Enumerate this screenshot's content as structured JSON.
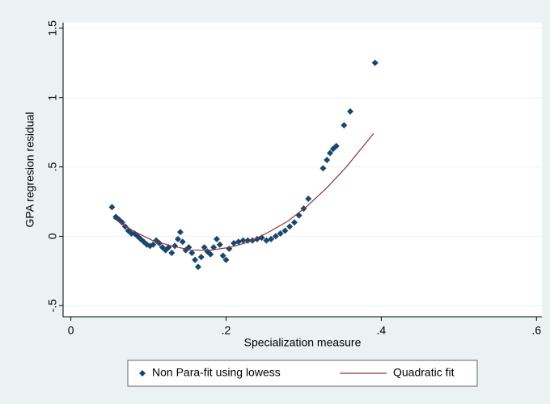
{
  "chart_data": {
    "type": "scatter",
    "xlabel": "Specialization measure",
    "ylabel": "GPA regresion residual",
    "xlim": [
      -0.01,
      0.607
    ],
    "ylim": [
      -0.58,
      1.54
    ],
    "xticks": [
      0,
      {
        "value": 0.2,
        "label": ".2"
      },
      {
        "value": 0.4,
        "label": ".4"
      },
      {
        "value": 0.6,
        "label": ".6"
      }
    ],
    "yticks": [
      {
        "value": -0.5,
        "label": "-.5"
      },
      0,
      {
        "value": 0.5,
        "label": ".5"
      },
      1,
      1.5
    ],
    "grid": true,
    "legend": "bottom",
    "series": [
      {
        "name": "Non Para-fit using lowess",
        "color": "#1a476f",
        "type": "scatter",
        "x": [
          0.053,
          0.058,
          0.062,
          0.066,
          0.07,
          0.074,
          0.078,
          0.082,
          0.086,
          0.09,
          0.094,
          0.098,
          0.102,
          0.106,
          0.11,
          0.114,
          0.118,
          0.122,
          0.126,
          0.13,
          0.134,
          0.138,
          0.141,
          0.144,
          0.148,
          0.152,
          0.156,
          0.16,
          0.164,
          0.168,
          0.172,
          0.176,
          0.18,
          0.184,
          0.188,
          0.192,
          0.196,
          0.2,
          0.204,
          0.21,
          0.216,
          0.222,
          0.228,
          0.234,
          0.24,
          0.246,
          0.252,
          0.258,
          0.264,
          0.27,
          0.276,
          0.282,
          0.288,
          0.294,
          0.3,
          0.306,
          0.325,
          0.33,
          0.334,
          0.338,
          0.342,
          0.352,
          0.36,
          0.392
        ],
        "values": [
          0.21,
          0.14,
          0.12,
          0.1,
          0.07,
          0.04,
          0.02,
          0.02,
          0,
          -0.02,
          -0.04,
          -0.06,
          -0.07,
          -0.06,
          -0.03,
          -0.05,
          -0.08,
          -0.1,
          -0.08,
          -0.12,
          -0.07,
          -0.02,
          0.03,
          -0.04,
          -0.1,
          -0.08,
          -0.12,
          -0.17,
          -0.22,
          -0.15,
          -0.08,
          -0.11,
          -0.13,
          -0.08,
          -0.02,
          -0.06,
          -0.14,
          -0.17,
          -0.09,
          -0.05,
          -0.04,
          -0.03,
          -0.03,
          -0.03,
          -0.02,
          -0.01,
          -0.03,
          -0.02,
          0,
          0.02,
          0.04,
          0.07,
          0.1,
          0.15,
          0.2,
          0.27,
          0.49,
          0.55,
          0.6,
          0.63,
          0.65,
          0.8,
          0.9,
          1.25
        ]
      },
      {
        "name": "Quadratic fit",
        "color": "#90353b",
        "type": "line",
        "x": [
          0.055,
          0.08,
          0.105,
          0.13,
          0.155,
          0.18,
          0.205,
          0.23,
          0.255,
          0.28,
          0.305,
          0.33,
          0.355,
          0.39
        ],
        "values": [
          0.13,
          0.04,
          -0.03,
          -0.07,
          -0.1,
          -0.1,
          -0.08,
          -0.04,
          0.03,
          0.11,
          0.22,
          0.35,
          0.5,
          0.74
        ]
      }
    ]
  }
}
